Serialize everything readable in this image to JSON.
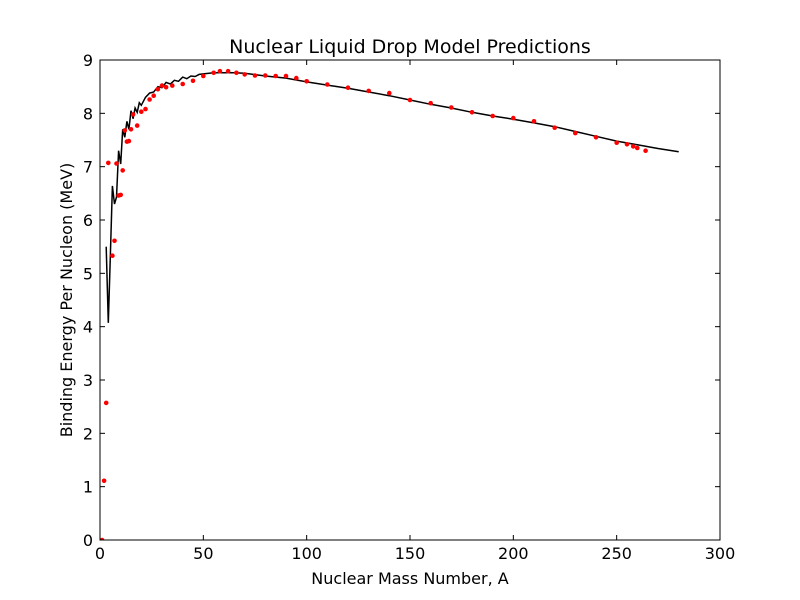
{
  "chart_data": {
    "type": "scatter",
    "title": "Nuclear Liquid Drop Model Predictions",
    "xlabel": "Nuclear Mass Number, A",
    "ylabel": "Binding Energy Per Nucleon (MeV)",
    "xlim": [
      0,
      300
    ],
    "ylim": [
      0,
      9
    ],
    "xticks": [
      0,
      50,
      100,
      150,
      200,
      250,
      300
    ],
    "yticks": [
      0,
      1,
      2,
      3,
      4,
      5,
      6,
      7,
      8,
      9
    ],
    "grid": false,
    "legend": "none",
    "colors": {
      "measured": "#ff0000",
      "model": "#000000"
    },
    "series": [
      {
        "kind": "points",
        "x": [
          1,
          2,
          3,
          4,
          6,
          7,
          8,
          9,
          10,
          11,
          12,
          13,
          14,
          15,
          16,
          18,
          20,
          22,
          24,
          26,
          28,
          30,
          32,
          35,
          40,
          45,
          50,
          55,
          58,
          62,
          66,
          70,
          75,
          80,
          85,
          90,
          95,
          100,
          110,
          120,
          130,
          140,
          150,
          160,
          170,
          180,
          190,
          200,
          210,
          220,
          230,
          240,
          250,
          255,
          258,
          260,
          264
        ],
        "y": [
          0.0,
          1.11,
          2.57,
          7.07,
          5.33,
          5.61,
          7.06,
          6.46,
          6.47,
          6.93,
          7.68,
          7.47,
          7.48,
          7.7,
          7.98,
          7.77,
          8.03,
          8.08,
          8.26,
          8.33,
          8.45,
          8.52,
          8.49,
          8.52,
          8.55,
          8.61,
          8.7,
          8.76,
          8.79,
          8.79,
          8.76,
          8.73,
          8.71,
          8.71,
          8.7,
          8.7,
          8.66,
          8.6,
          8.54,
          8.48,
          8.42,
          8.38,
          8.25,
          8.19,
          8.11,
          8.02,
          7.95,
          7.91,
          7.85,
          7.73,
          7.63,
          7.55,
          7.45,
          7.42,
          7.38,
          7.35,
          7.3
        ]
      },
      {
        "kind": "line",
        "x": [
          3,
          4,
          5,
          6,
          7,
          8,
          9,
          10,
          11,
          12,
          13,
          14,
          15,
          16,
          17,
          18,
          19,
          20,
          22,
          24,
          26,
          28,
          30,
          32,
          34,
          36,
          38,
          40,
          42,
          44,
          46,
          48,
          50,
          55,
          60,
          65,
          70,
          80,
          90,
          100,
          110,
          120,
          130,
          140,
          150,
          160,
          170,
          180,
          190,
          200,
          210,
          220,
          230,
          240,
          250,
          260,
          270,
          280
        ],
        "y": [
          5.5,
          4.07,
          5.3,
          6.64,
          6.3,
          6.43,
          7.3,
          7.05,
          7.7,
          7.55,
          7.85,
          7.7,
          8.05,
          7.9,
          8.1,
          8.02,
          8.2,
          8.15,
          8.3,
          8.38,
          8.4,
          8.5,
          8.48,
          8.58,
          8.55,
          8.62,
          8.6,
          8.68,
          8.65,
          8.7,
          8.69,
          8.73,
          8.74,
          8.76,
          8.76,
          8.76,
          8.75,
          8.7,
          8.66,
          8.59,
          8.53,
          8.47,
          8.4,
          8.33,
          8.25,
          8.17,
          8.1,
          8.02,
          7.95,
          7.89,
          7.82,
          7.75,
          7.66,
          7.57,
          7.48,
          7.41,
          7.34,
          7.28
        ]
      }
    ]
  }
}
